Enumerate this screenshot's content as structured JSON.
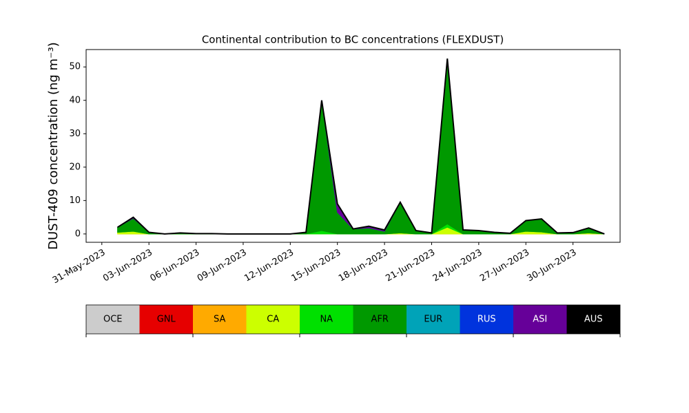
{
  "chart_data": {
    "type": "stacked-area",
    "title": "Continental contribution to BC concentrations (FLEXDUST)",
    "y_label": "DUST-409 concentration (ng m⁻³)",
    "x": [
      "2023-06-01",
      "2023-06-02",
      "2023-06-03",
      "2023-06-04",
      "2023-06-05",
      "2023-06-06",
      "2023-06-07",
      "2023-06-08",
      "2023-06-09",
      "2023-06-10",
      "2023-06-11",
      "2023-06-12",
      "2023-06-13",
      "2023-06-14",
      "2023-06-15",
      "2023-06-16",
      "2023-06-17",
      "2023-06-18",
      "2023-06-19",
      "2023-06-20",
      "2023-06-21",
      "2023-06-22",
      "2023-06-23",
      "2023-06-24",
      "2023-06-25",
      "2023-06-26",
      "2023-06-27",
      "2023-06-28",
      "2023-06-29",
      "2023-06-30",
      "2023-07-01",
      "2023-07-02"
    ],
    "xlim": [
      "2023-05-30",
      "2023-07-03"
    ],
    "xticks": [
      {
        "value": "2023-05-31",
        "label": "31-May-2023"
      },
      {
        "value": "2023-06-03",
        "label": "03-Jun-2023"
      },
      {
        "value": "2023-06-06",
        "label": "06-Jun-2023"
      },
      {
        "value": "2023-06-09",
        "label": "09-Jun-2023"
      },
      {
        "value": "2023-06-12",
        "label": "12-Jun-2023"
      },
      {
        "value": "2023-06-15",
        "label": "15-Jun-2023"
      },
      {
        "value": "2023-06-18",
        "label": "18-Jun-2023"
      },
      {
        "value": "2023-06-21",
        "label": "21-Jun-2023"
      },
      {
        "value": "2023-06-24",
        "label": "24-Jun-2023"
      },
      {
        "value": "2023-06-27",
        "label": "27-Jun-2023"
      },
      {
        "value": "2023-06-30",
        "label": "30-Jun-2023"
      }
    ],
    "ylim": [
      -2.5,
      55.2
    ],
    "yticks": [
      0,
      10,
      20,
      30,
      40,
      50
    ],
    "series": [
      {
        "name": "OCE",
        "color": "#cccccc",
        "values": [
          0,
          0,
          0,
          0,
          0,
          0,
          0,
          0,
          0,
          0,
          0,
          0,
          0,
          0,
          0,
          0,
          0,
          0,
          0,
          0,
          0,
          0,
          0,
          0,
          0,
          0,
          0,
          0,
          0,
          0,
          0,
          0
        ]
      },
      {
        "name": "GNL",
        "color": "#e60000",
        "values": [
          0,
          0,
          0,
          0,
          0,
          0,
          0,
          0,
          0,
          0,
          0,
          0,
          0,
          0,
          0,
          0,
          0,
          0,
          0,
          0,
          0,
          0,
          0,
          0,
          0,
          0,
          0,
          0,
          0,
          0,
          0,
          0
        ]
      },
      {
        "name": "SA",
        "color": "#ffaa00",
        "values": [
          0,
          0,
          0,
          0,
          0,
          0,
          0,
          0,
          0,
          0,
          0,
          0,
          0,
          0,
          0,
          0,
          0,
          0,
          0,
          0,
          0,
          0,
          0,
          0,
          0,
          0,
          0,
          0,
          0,
          0,
          0,
          0
        ]
      },
      {
        "name": "CA",
        "color": "#ccff00",
        "values": [
          0.5,
          0.8,
          0,
          0,
          0,
          0,
          0,
          0,
          0,
          0,
          0,
          0,
          0,
          0,
          0,
          0,
          0,
          0,
          0.3,
          0,
          0,
          2,
          0,
          0,
          0,
          0,
          0.8,
          0.6,
          0,
          0,
          0.3,
          0
        ]
      },
      {
        "name": "NA",
        "color": "#00e000",
        "values": [
          0,
          0,
          0,
          0,
          0,
          0,
          0,
          0,
          0,
          0,
          0,
          0,
          0,
          1,
          0,
          0,
          0,
          0,
          0,
          0,
          0,
          1,
          0,
          0,
          0,
          0,
          0,
          0,
          0,
          0,
          0,
          0
        ]
      },
      {
        "name": "AFR",
        "color": "#009900",
        "values": [
          1.5,
          3.9,
          0.5,
          0,
          0.3,
          0.1,
          0.1,
          0,
          0,
          0,
          0,
          0,
          0.5,
          39,
          6.5,
          1.5,
          1.8,
          0.8,
          9.2,
          1,
          0.3,
          49.5,
          1.2,
          1,
          0.5,
          0.2,
          3.2,
          3.9,
          0.3,
          0.4,
          1.5,
          0
        ]
      },
      {
        "name": "EUR",
        "color": "#00a3b8",
        "values": [
          0,
          0,
          0,
          0,
          0,
          0,
          0,
          0,
          0,
          0,
          0,
          0,
          0,
          0,
          0,
          0,
          0,
          0,
          0,
          0,
          0,
          0,
          0,
          0,
          0,
          0,
          0,
          0,
          0,
          0,
          0,
          0
        ]
      },
      {
        "name": "RUS",
        "color": "#0033dd",
        "values": [
          0,
          0,
          0,
          0,
          0,
          0,
          0,
          0,
          0,
          0,
          0,
          0,
          0,
          0,
          0,
          0,
          0,
          0,
          0,
          0,
          0,
          0,
          0,
          0,
          0,
          0,
          0,
          0,
          0,
          0,
          0,
          0
        ]
      },
      {
        "name": "ASI",
        "color": "#660099",
        "values": [
          0,
          0.3,
          0,
          0,
          0,
          0,
          0,
          0,
          0,
          0,
          0,
          0,
          0,
          0,
          2.5,
          0,
          0.5,
          0.4,
          0,
          0,
          0,
          0,
          0,
          0,
          0,
          0,
          0,
          0,
          0,
          0,
          0,
          0
        ]
      },
      {
        "name": "AUS",
        "color": "#000000",
        "values": [
          0,
          0,
          0,
          0,
          0,
          0,
          0,
          0,
          0,
          0,
          0,
          0,
          0,
          0,
          0,
          0,
          0,
          0,
          0,
          0,
          0,
          0,
          0,
          0,
          0,
          0,
          0,
          0,
          0,
          0,
          0,
          0
        ]
      }
    ]
  }
}
